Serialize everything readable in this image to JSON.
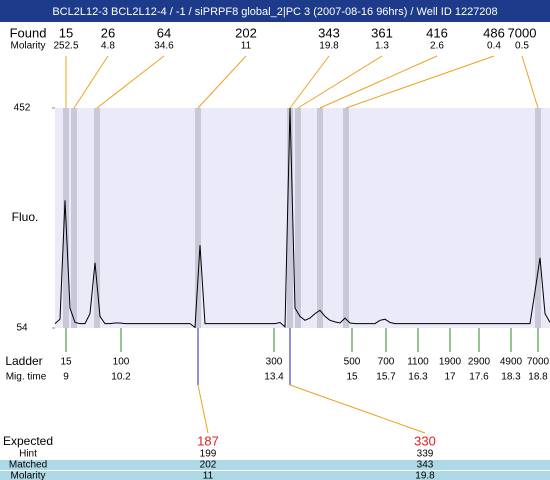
{
  "title": "BCL2L12-3  BCL2L12-4 / -1 / siPRPF8 global_2|PC 3 (2007-08-16 96hrs) / Well ID 1227208",
  "found": {
    "label": "Found",
    "molarity_label": "Molarity",
    "sizes": [
      15,
      26,
      64,
      202,
      343,
      361,
      416,
      486,
      7000
    ],
    "molarity": [
      252.5,
      4.8,
      34.6,
      11,
      19.8,
      1.3,
      2.6,
      0.4,
      0.5
    ]
  },
  "chart_data": {
    "type": "line",
    "ylabel": "Fluo.",
    "ylim": [
      54,
      452
    ],
    "yticks": [
      54,
      452
    ],
    "color": "#000000",
    "values": [
      62,
      70,
      285,
      90,
      64,
      62,
      62,
      80,
      172,
      75,
      62,
      62,
      63,
      63,
      62,
      62,
      62,
      62,
      62,
      62,
      62,
      62,
      62,
      62,
      62,
      62,
      62,
      62,
      55,
      204,
      62,
      62,
      62,
      62,
      62,
      62,
      62,
      62,
      62,
      62,
      62,
      62,
      62,
      62,
      62,
      64,
      56,
      452,
      90,
      75,
      68,
      72,
      80,
      86,
      75,
      68,
      65,
      63,
      72,
      63,
      62,
      62,
      62,
      62,
      62,
      68,
      70,
      64,
      62,
      62,
      62,
      62,
      62,
      62,
      62,
      62,
      62,
      62,
      62,
      62,
      62,
      62,
      62,
      62,
      62,
      62,
      62,
      62,
      62,
      62,
      62,
      62,
      62,
      62,
      62,
      62,
      120,
      181,
      80,
      64
    ]
  },
  "ladder": {
    "label": "Ladder",
    "time_label": "Mig. time",
    "sizes": [
      15,
      100,
      300,
      500,
      700,
      1100,
      1900,
      2900,
      4900,
      7000
    ],
    "times": [
      9,
      10.2,
      13.4,
      15,
      15.7,
      16.3,
      17,
      17.6,
      18.3,
      18.8
    ]
  },
  "expected": {
    "label": "Expected",
    "values": [
      187,
      330
    ],
    "hint_label": "Hint",
    "hint": [
      199,
      339
    ],
    "matched_label": "Matched",
    "matched": [
      202,
      343
    ],
    "molarity_label": "Molarity",
    "molarity": [
      11,
      19.8
    ]
  }
}
